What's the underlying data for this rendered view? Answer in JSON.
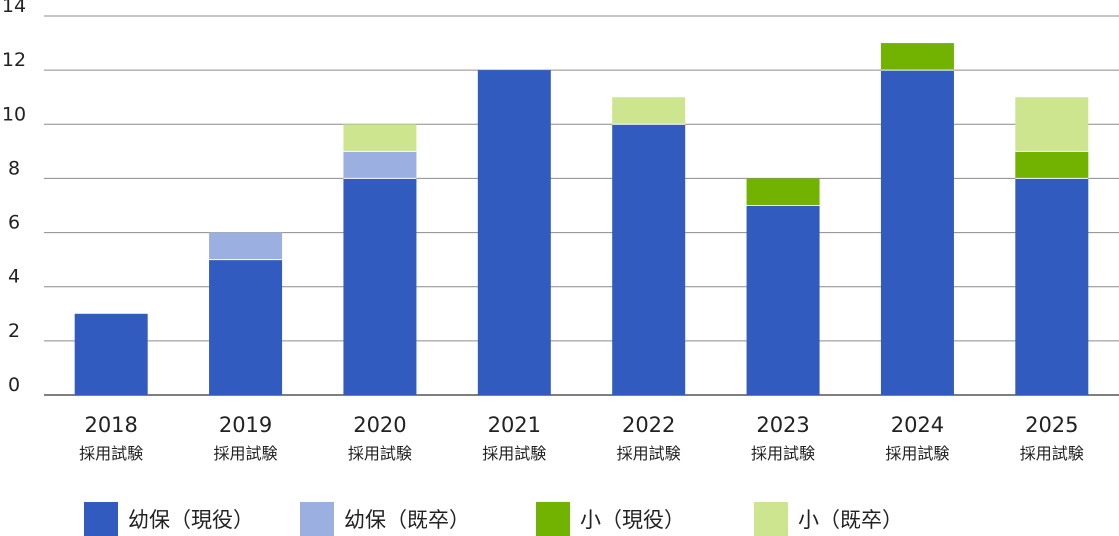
{
  "chart_data": {
    "type": "bar",
    "stacked": true,
    "categories": [
      "2018",
      "2019",
      "2020",
      "2021",
      "2022",
      "2023",
      "2024",
      "2025"
    ],
    "category_sublabel": "採用試験",
    "series": [
      {
        "name": "幼保（現役）",
        "color": "#315bbf",
        "values": [
          3,
          5,
          8,
          12,
          10,
          7,
          12,
          8
        ]
      },
      {
        "name": "幼保（既卒）",
        "color": "#9bb0e0",
        "values": [
          0,
          1,
          1,
          0,
          0,
          0,
          0,
          0
        ]
      },
      {
        "name": "小（現役）",
        "color": "#72b200",
        "values": [
          0,
          0,
          0,
          0,
          0,
          1,
          1,
          1
        ]
      },
      {
        "name": "小（既卒）",
        "color": "#cde58f",
        "values": [
          0,
          0,
          1,
          0,
          1,
          0,
          0,
          2
        ]
      }
    ],
    "ylim": [
      0,
      14
    ],
    "yticks": [
      0,
      2,
      4,
      6,
      8,
      10,
      12,
      14
    ],
    "grid": true,
    "legend_position": "bottom"
  }
}
